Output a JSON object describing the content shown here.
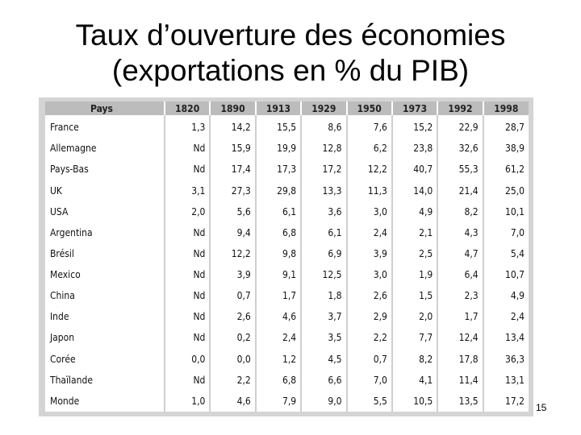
{
  "slide": {
    "title_line1": "Taux d’ouverture des économies",
    "title_line2": "(exportations en % du PIB)",
    "page_number": "15"
  },
  "table": {
    "headers": [
      "Pays",
      "1820",
      "1890",
      "1913",
      "1929",
      "1950",
      "1973",
      "1992",
      "1998"
    ],
    "rows": [
      {
        "country": "France",
        "values": [
          "1,3",
          "14,2",
          "15,5",
          "8,6",
          "7,6",
          "15,2",
          "22,9",
          "28,7"
        ]
      },
      {
        "country": "Allemagne",
        "values": [
          "Nd",
          "15,9",
          "19,9",
          "12,8",
          "6,2",
          "23,8",
          "32,6",
          "38,9"
        ]
      },
      {
        "country": "Pays-Bas",
        "values": [
          "Nd",
          "17,4",
          "17,3",
          "17,2",
          "12,2",
          "40,7",
          "55,3",
          "61,2"
        ]
      },
      {
        "country": "UK",
        "values": [
          "3,1",
          "27,3",
          "29,8",
          "13,3",
          "11,3",
          "14,0",
          "21,4",
          "25,0"
        ]
      },
      {
        "country": "USA",
        "values": [
          "2,0",
          "5,6",
          "6,1",
          "3,6",
          "3,0",
          "4,9",
          "8,2",
          "10,1"
        ]
      },
      {
        "country": "Argentina",
        "values": [
          "Nd",
          "9,4",
          "6,8",
          "6,1",
          "2,4",
          "2,1",
          "4,3",
          "7,0"
        ]
      },
      {
        "country": "Brésil",
        "values": [
          "Nd",
          "12,2",
          "9,8",
          "6,9",
          "3,9",
          "2,5",
          "4,7",
          "5,4"
        ]
      },
      {
        "country": "Mexico",
        "values": [
          "Nd",
          "3,9",
          "9,1",
          "12,5",
          "3,0",
          "1,9",
          "6,4",
          "10,7"
        ]
      },
      {
        "country": "China",
        "values": [
          "Nd",
          "0,7",
          "1,7",
          "1,8",
          "2,6",
          "1,5",
          "2,3",
          "4,9"
        ]
      },
      {
        "country": "Inde",
        "values": [
          "Nd",
          "2,6",
          "4,6",
          "3,7",
          "2,9",
          "2,0",
          "1,7",
          "2,4"
        ]
      },
      {
        "country": "Japon",
        "values": [
          "Nd",
          "0,2",
          "2,4",
          "3,5",
          "2,2",
          "7,7",
          "12,4",
          "13,4"
        ]
      },
      {
        "country": "Corée",
        "values": [
          "0,0",
          "0,0",
          "1,2",
          "4,5",
          "0,7",
          "8,2",
          "17,8",
          "36,3"
        ]
      },
      {
        "country": "Thaïlande",
        "values": [
          "Nd",
          "2,2",
          "6,8",
          "6,6",
          "7,0",
          "4,1",
          "11,4",
          "13,1"
        ]
      },
      {
        "country": "Monde",
        "values": [
          "1,0",
          "4,6",
          "7,9",
          "9,0",
          "5,5",
          "10,5",
          "13,5",
          "17,2"
        ]
      }
    ]
  }
}
